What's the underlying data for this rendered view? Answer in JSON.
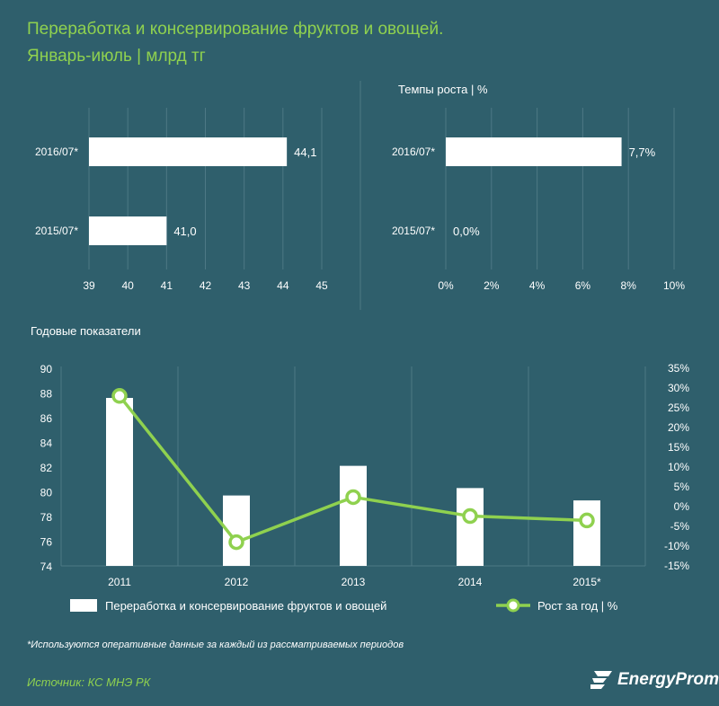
{
  "title": {
    "line1": "Переработка и консервирование  фруктов и овощей.",
    "line2": "Январь-июль  | млрд тг"
  },
  "chart_data": [
    {
      "type": "bar",
      "orientation": "horizontal",
      "title": "",
      "categories": [
        "2016/07*",
        "2015/07*"
      ],
      "values": [
        44.1,
        41.0
      ],
      "value_labels": [
        "44,1",
        "41,0"
      ],
      "xlim": [
        39,
        45
      ],
      "ticks": [
        "39",
        "40",
        "41",
        "42",
        "43",
        "44",
        "45"
      ],
      "grid": true
    },
    {
      "type": "bar",
      "orientation": "horizontal",
      "title": "Темпы роста  | %",
      "categories": [
        "2016/07*",
        "2015/07*"
      ],
      "values": [
        7.7,
        0.0
      ],
      "value_labels": [
        "7,7%",
        "0,0%"
      ],
      "xlim": [
        0,
        10
      ],
      "ticks": [
        "0%",
        "2%",
        "4%",
        "6%",
        "8%",
        "10%"
      ],
      "grid": true
    },
    {
      "type": "bar+line",
      "title": "Годовые показатели",
      "categories": [
        "2011",
        "2012",
        "2013",
        "2014",
        "2015*"
      ],
      "series": [
        {
          "name": "Переработка и консервирование  фруктов и овощей",
          "type": "bar",
          "axis": "left",
          "values": [
            87.6,
            79.7,
            82.1,
            80.3,
            79.3
          ]
        },
        {
          "name": "Рост за год  | %",
          "type": "line",
          "axis": "right",
          "values": [
            28.0,
            -9.0,
            2.4,
            -2.4,
            -3.5
          ]
        }
      ],
      "ylim_left": [
        74,
        90
      ],
      "yticks_left": [
        "74",
        "76",
        "78",
        "80",
        "82",
        "84",
        "86",
        "88",
        "90"
      ],
      "ylim_right": [
        -15,
        35
      ],
      "yticks_right": [
        "-15%",
        "-10%",
        "-5%",
        "0%",
        "5%",
        "10%",
        "15%",
        "20%",
        "25%",
        "30%",
        "35%"
      ],
      "grid": true,
      "legend_position": "bottom"
    }
  ],
  "footnote": "*Используются оперативные данные за каждый из рассматриваемых периодов",
  "source": "Источник: КС МНЭ РК",
  "logo": {
    "text": "EnergyProm"
  },
  "colors": {
    "background": "#2f5f6c",
    "accent": "#8fd14f",
    "bar": "#ffffff",
    "grid": "#4d7885"
  }
}
